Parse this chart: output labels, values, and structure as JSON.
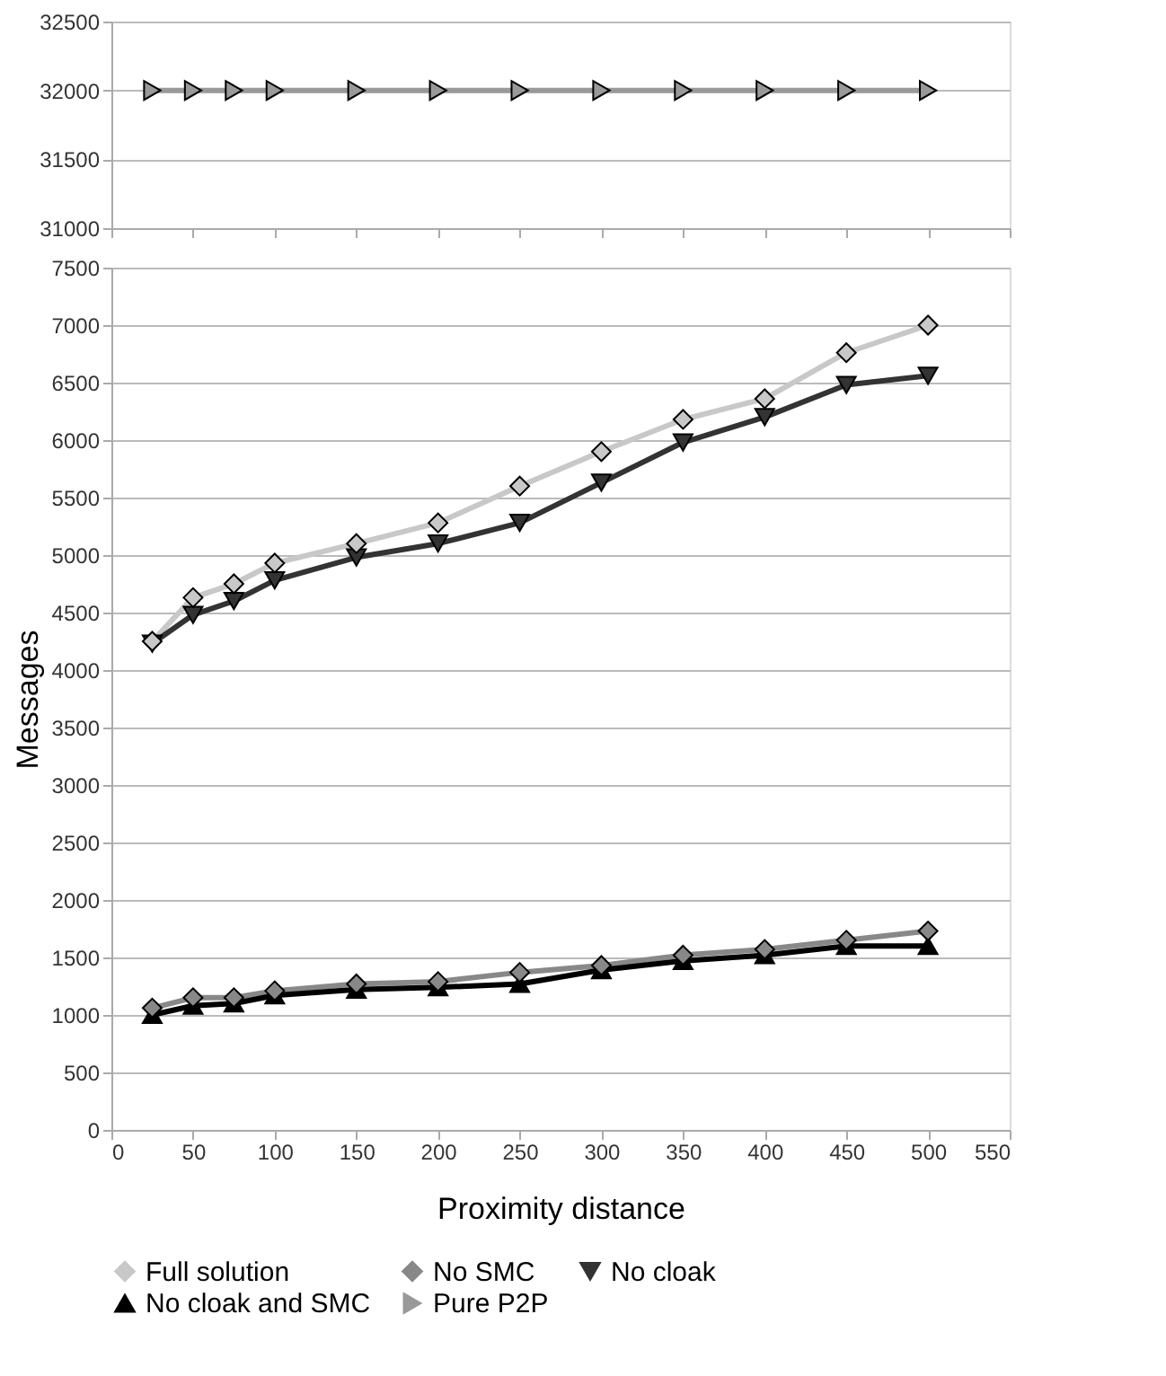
{
  "chart_data": [
    {
      "type": "line",
      "x": [
        25,
        50,
        75,
        100,
        150,
        200,
        250,
        300,
        350,
        400,
        450,
        500
      ],
      "xlim": [
        0,
        550
      ],
      "xticks": [
        0,
        50,
        100,
        150,
        200,
        250,
        300,
        350,
        400,
        450,
        500,
        550
      ],
      "ylim": [
        31000,
        32500
      ],
      "yticks": [
        31000,
        31500,
        32000,
        32500
      ],
      "grid": "y",
      "legend": "bottom",
      "tick_labels": "y",
      "line_style": "solid",
      "series": [
        {
          "name": "Pure P2P",
          "color": "#999999",
          "marker": "triangle-right",
          "values": [
            32000,
            32000,
            32000,
            32000,
            32000,
            32000,
            32000,
            32000,
            32000,
            32000,
            32000,
            32000
          ]
        }
      ]
    },
    {
      "type": "line",
      "x": [
        25,
        50,
        75,
        100,
        150,
        200,
        250,
        300,
        350,
        400,
        450,
        500
      ],
      "xlim": [
        0,
        550
      ],
      "xticks": [
        0,
        50,
        100,
        150,
        200,
        250,
        300,
        350,
        400,
        450,
        500,
        550
      ],
      "ylim": [
        0,
        7500
      ],
      "yticks": [
        0,
        500,
        1000,
        1500,
        2000,
        2500,
        3000,
        3500,
        4000,
        4500,
        5000,
        5500,
        6000,
        6500,
        7000,
        7500
      ],
      "grid": "y",
      "legend": "bottom",
      "line_style": "solid",
      "xlabel": "Proximity distance",
      "ylabel": "Messages",
      "series": [
        {
          "name": "Full solution",
          "color": "#c8c8c8",
          "marker": "diamond",
          "values": [
            4250,
            4630,
            4750,
            4930,
            5100,
            5280,
            5600,
            5900,
            6180,
            6360,
            6760,
            7000
          ]
        },
        {
          "name": "No SMC",
          "color": "#888888",
          "marker": "diamond",
          "values": [
            1060,
            1150,
            1150,
            1210,
            1270,
            1290,
            1370,
            1430,
            1520,
            1570,
            1650,
            1730
          ]
        },
        {
          "name": "No cloak",
          "color": "#333333",
          "marker": "triangle-down",
          "values": [
            4230,
            4480,
            4600,
            4780,
            4980,
            5100,
            5280,
            5630,
            5980,
            6200,
            6480,
            6560
          ]
        },
        {
          "name": "No cloak and SMC",
          "color": "#000000",
          "marker": "triangle",
          "values": [
            1000,
            1080,
            1100,
            1170,
            1220,
            1240,
            1270,
            1390,
            1470,
            1520,
            1600,
            1600
          ]
        }
      ]
    }
  ]
}
